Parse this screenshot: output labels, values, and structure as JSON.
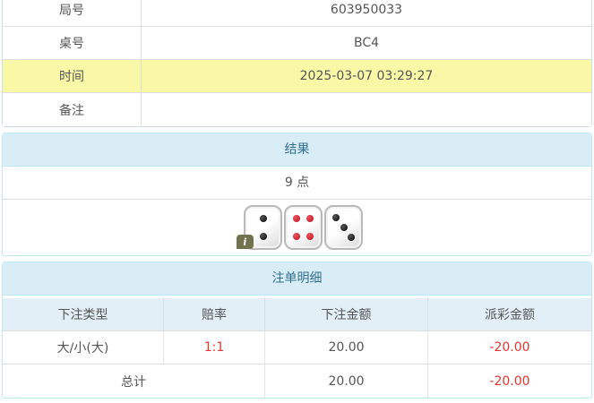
{
  "colors": {
    "heading_bg": "#d9edf7",
    "heading_text": "#31708f",
    "panel_border": "#bce8f1",
    "highlight_yellow": "#f8f8a6",
    "negative_red": "#e8342c",
    "text_gray": "#555555",
    "dot_black": "#1c1c1c",
    "dot_red": "#cc2230",
    "badge_olive": "#72724e"
  },
  "info_table": {
    "rows": [
      {
        "label": "局号",
        "value": "603950033",
        "highlight": false
      },
      {
        "label": "桌号",
        "value": "BC4",
        "highlight": false
      },
      {
        "label": "时间",
        "value": "2025-03-07 03:29:27",
        "highlight": true
      },
      {
        "label": "备注",
        "value": "",
        "highlight": false
      }
    ]
  },
  "result_panel": {
    "title": "结果",
    "points": "9 点",
    "dice": [
      {
        "value": 2,
        "color": "black"
      },
      {
        "value": 4,
        "color": "red"
      },
      {
        "value": 3,
        "color": "black"
      }
    ],
    "info_badge": "i"
  },
  "bets_panel": {
    "title": "注单明细",
    "columns": [
      "下注类型",
      "赔率",
      "下注金额",
      "派彩金额"
    ],
    "rows": [
      {
        "type": "大/小(大)",
        "odds": "1:1",
        "amount": "20.00",
        "payout": "-20.00"
      }
    ],
    "total": {
      "label": "总计",
      "amount": "20.00",
      "payout": "-20.00"
    }
  }
}
